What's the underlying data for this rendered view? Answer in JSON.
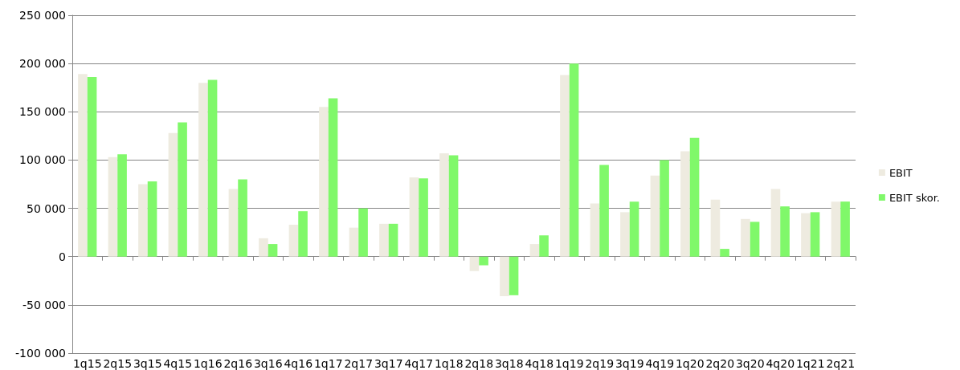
{
  "chart_data": {
    "type": "bar",
    "categories": [
      "1q15",
      "2q15",
      "3q15",
      "4q15",
      "1q16",
      "2q16",
      "3q16",
      "4q16",
      "1q17",
      "2q17",
      "3q17",
      "4q17",
      "1q18",
      "2q18",
      "3q18",
      "4q18",
      "1q19",
      "2q19",
      "3q19",
      "4q19",
      "1q20",
      "2q20",
      "3q20",
      "4q20",
      "1q21",
      "2q21"
    ],
    "series": [
      {
        "name": "EBIT",
        "color": "#eeebe0",
        "values": [
          189000,
          103000,
          75000,
          128000,
          180000,
          70000,
          19000,
          33000,
          155000,
          30000,
          34000,
          82000,
          107000,
          -15000,
          -41000,
          13000,
          188000,
          55000,
          46000,
          84000,
          109000,
          59000,
          39000,
          70000,
          45000,
          57000
        ]
      },
      {
        "name": "EBIT skor.",
        "color": "#80f86a",
        "values": [
          186000,
          106000,
          78000,
          139000,
          183000,
          80000,
          13000,
          47000,
          164000,
          50000,
          34000,
          81000,
          105000,
          -9000,
          -40000,
          22000,
          200000,
          95000,
          57000,
          100000,
          123000,
          8000,
          36000,
          52000,
          46000,
          57000
        ]
      }
    ],
    "ylim": [
      -100000,
      250000
    ],
    "yticks": [
      {
        "value": -100000,
        "label": "-100 000"
      },
      {
        "value": -50000,
        "label": "-50 000"
      },
      0,
      {
        "value": 50000,
        "label": "50 000"
      },
      {
        "value": 100000,
        "label": "100 000"
      },
      {
        "value": 150000,
        "label": "150 000"
      },
      {
        "value": 200000,
        "label": "200 000"
      },
      {
        "value": 250000,
        "label": "250 000"
      }
    ],
    "grid": "y",
    "legend": "right"
  }
}
